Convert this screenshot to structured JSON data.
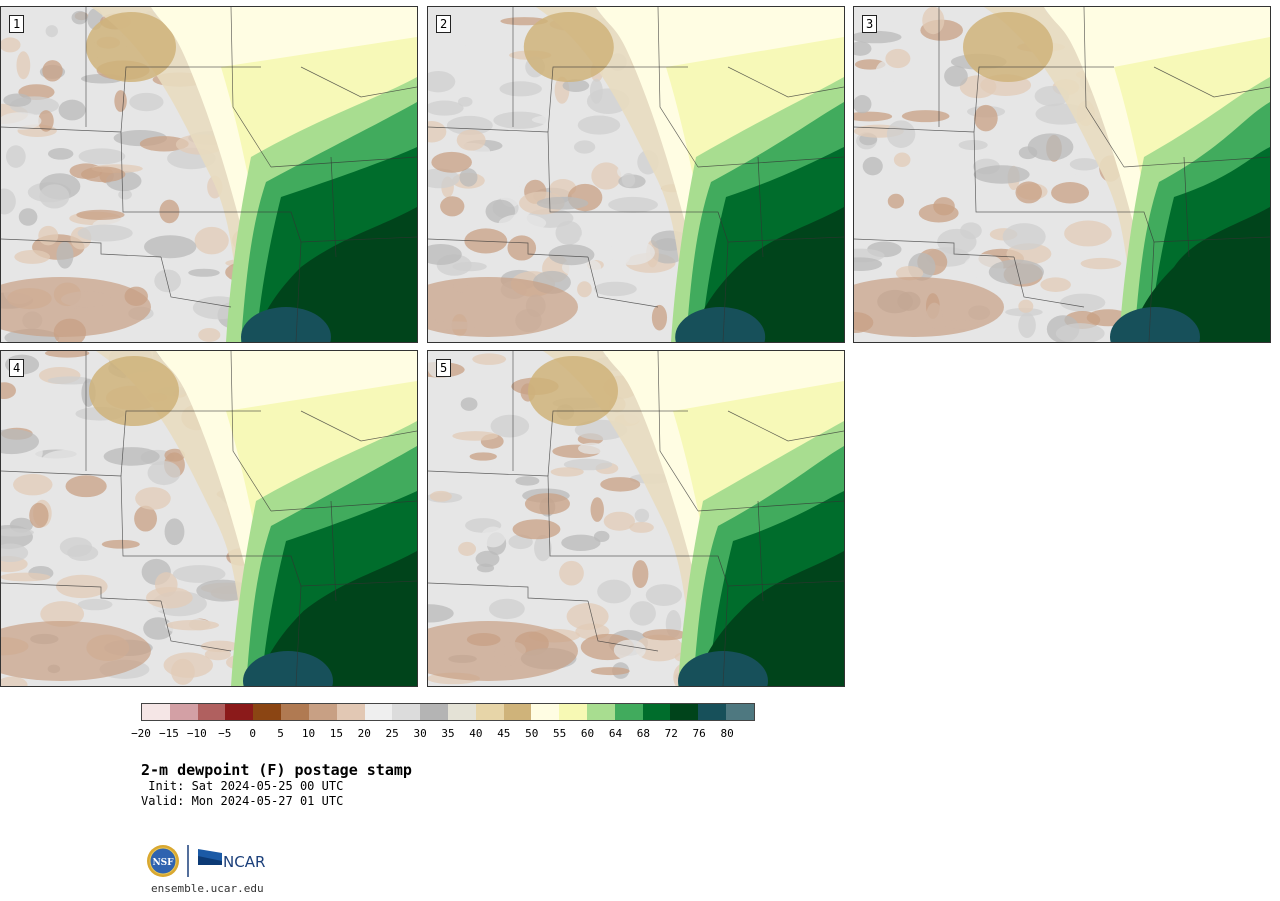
{
  "panels": [
    {
      "label": "1"
    },
    {
      "label": "2"
    },
    {
      "label": "3"
    },
    {
      "label": "4"
    },
    {
      "label": "5"
    }
  ],
  "colorbar": {
    "colors": [
      "#f5e6e6",
      "#d3a0a5",
      "#b0605f",
      "#8b1a1a",
      "#8b4513",
      "#b07a52",
      "#c8a084",
      "#e2c8b4",
      "#efefef",
      "#dcdcdc",
      "#b4b4b4",
      "#e4e2d6",
      "#e7d5a8",
      "#cfb37a",
      "#fffde3",
      "#f7f9b4",
      "#a8dd90",
      "#41ab5d",
      "#006d2c",
      "#00441b",
      "#17505a",
      "#4e7880"
    ],
    "ticks": [
      "−20",
      "−15",
      "−10",
      "−5",
      "0",
      "5",
      "10",
      "15",
      "20",
      "25",
      "30",
      "35",
      "40",
      "45",
      "50",
      "55",
      "60",
      "64",
      "68",
      "72",
      "76",
      "80"
    ]
  },
  "title": "2-m dewpoint (F) postage stamp",
  "init": " Init: Sat 2024-05-25 00 UTC",
  "valid": "Valid: Mon 2024-05-27 01 UTC",
  "logos": {
    "nsf": "NSF",
    "ncar": "NCAR"
  },
  "url": "ensemble.ucar.edu"
}
